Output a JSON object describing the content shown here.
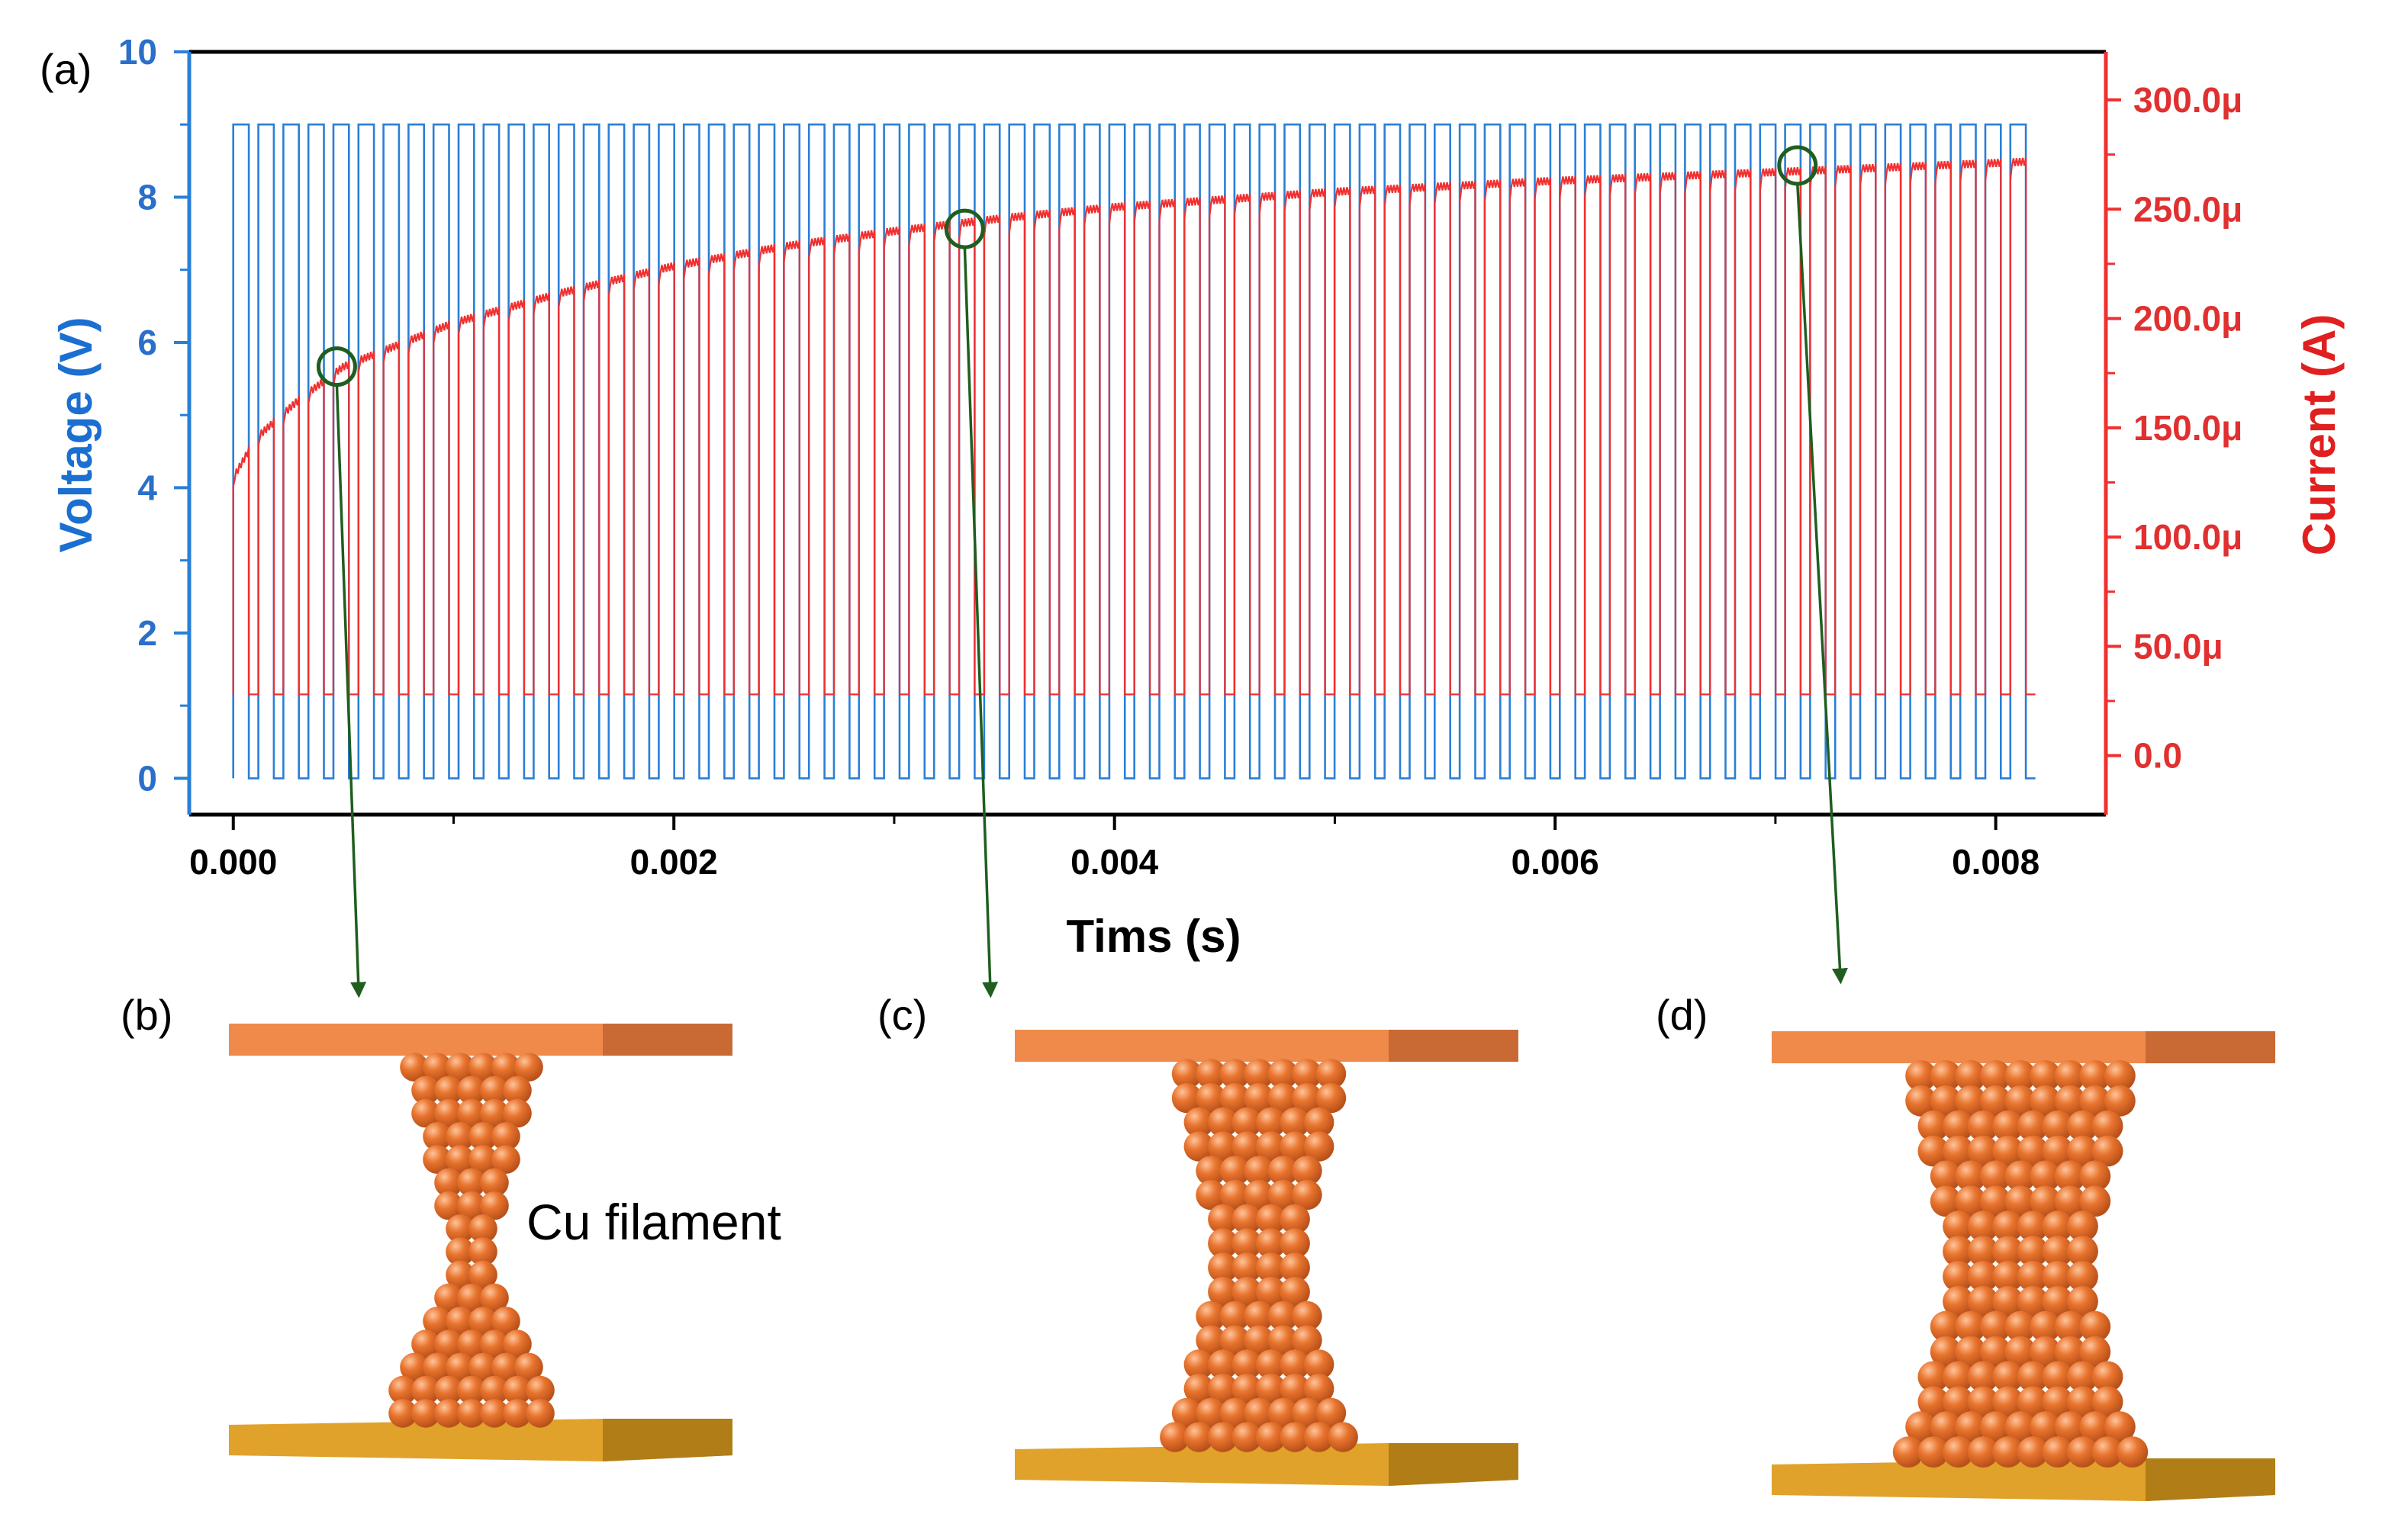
{
  "panel_labels": {
    "a": "(a)",
    "b": "(b)",
    "c": "(c)",
    "d": "(d)"
  },
  "annotation": "Cu filament",
  "colors": {
    "voltage": "#2a7fd6",
    "current": "#f03030",
    "marker": "#1f5e1f",
    "electrode_top": "#f08a4b",
    "electrode_top_side": "#c96a35",
    "electrode_bottom": "#e0a22a",
    "electrode_bottom_side": "#b07d16",
    "atom": "#e8742e",
    "atom_highlight": "#ffc49a"
  },
  "chart_data": {
    "type": "line",
    "xlabel": "Tims (s)",
    "ylabel": "Voltage (V)",
    "y2label": "Current (A)",
    "xlim": [
      -0.0002,
      0.0085
    ],
    "ylim": [
      -0.5,
      10
    ],
    "y2lim": [
      -2.7e-05,
      0.000322
    ],
    "x_ticks": [
      "0.000",
      "0.002",
      "0.004",
      "0.006",
      "0.008"
    ],
    "x_tick_values": [
      0.0,
      0.002,
      0.004,
      0.006,
      0.008
    ],
    "y_ticks": [
      "0",
      "2",
      "4",
      "6",
      "8",
      "10"
    ],
    "y_tick_values": [
      0,
      2,
      4,
      6,
      8,
      10
    ],
    "y2_ticks": [
      "0.0",
      "50.0μ",
      "100.0μ",
      "150.0μ",
      "200.0μ",
      "250.0μ",
      "300.0μ"
    ],
    "y2_tick_values": [
      0.0,
      5e-05,
      0.0001,
      0.00015,
      0.0002,
      0.00025,
      0.0003
    ],
    "pulse_train": {
      "pulses": 72,
      "t_start": 0.0,
      "t_end": 0.00818,
      "high_V": 9,
      "low_V": 0,
      "duty": 0.62
    },
    "current_envelope": {
      "t": [
        0.0,
        0.0001,
        0.0003,
        0.0005,
        0.001,
        0.0015,
        0.002,
        0.0025,
        0.003,
        0.0035,
        0.004,
        0.005,
        0.006,
        0.007,
        0.0082
      ],
      "I": [
        0.000127,
        0.000145,
        0.000163,
        0.000178,
        0.000198,
        0.000212,
        0.000224,
        0.000233,
        0.00024,
        0.000246,
        0.000251,
        0.000258,
        0.000263,
        0.000267,
        0.000272
      ]
    },
    "current_low_level": 2.8e-05,
    "series": [
      {
        "name": "Voltage (V)",
        "axis": "left"
      },
      {
        "name": "Current (A)",
        "axis": "right"
      }
    ],
    "markers": [
      {
        "label": "b",
        "t": 0.00047,
        "I": 0.000178
      },
      {
        "label": "c",
        "t": 0.00332,
        "I": 0.000241
      },
      {
        "label": "d",
        "t": 0.0071,
        "I": 0.00027
      }
    ]
  }
}
